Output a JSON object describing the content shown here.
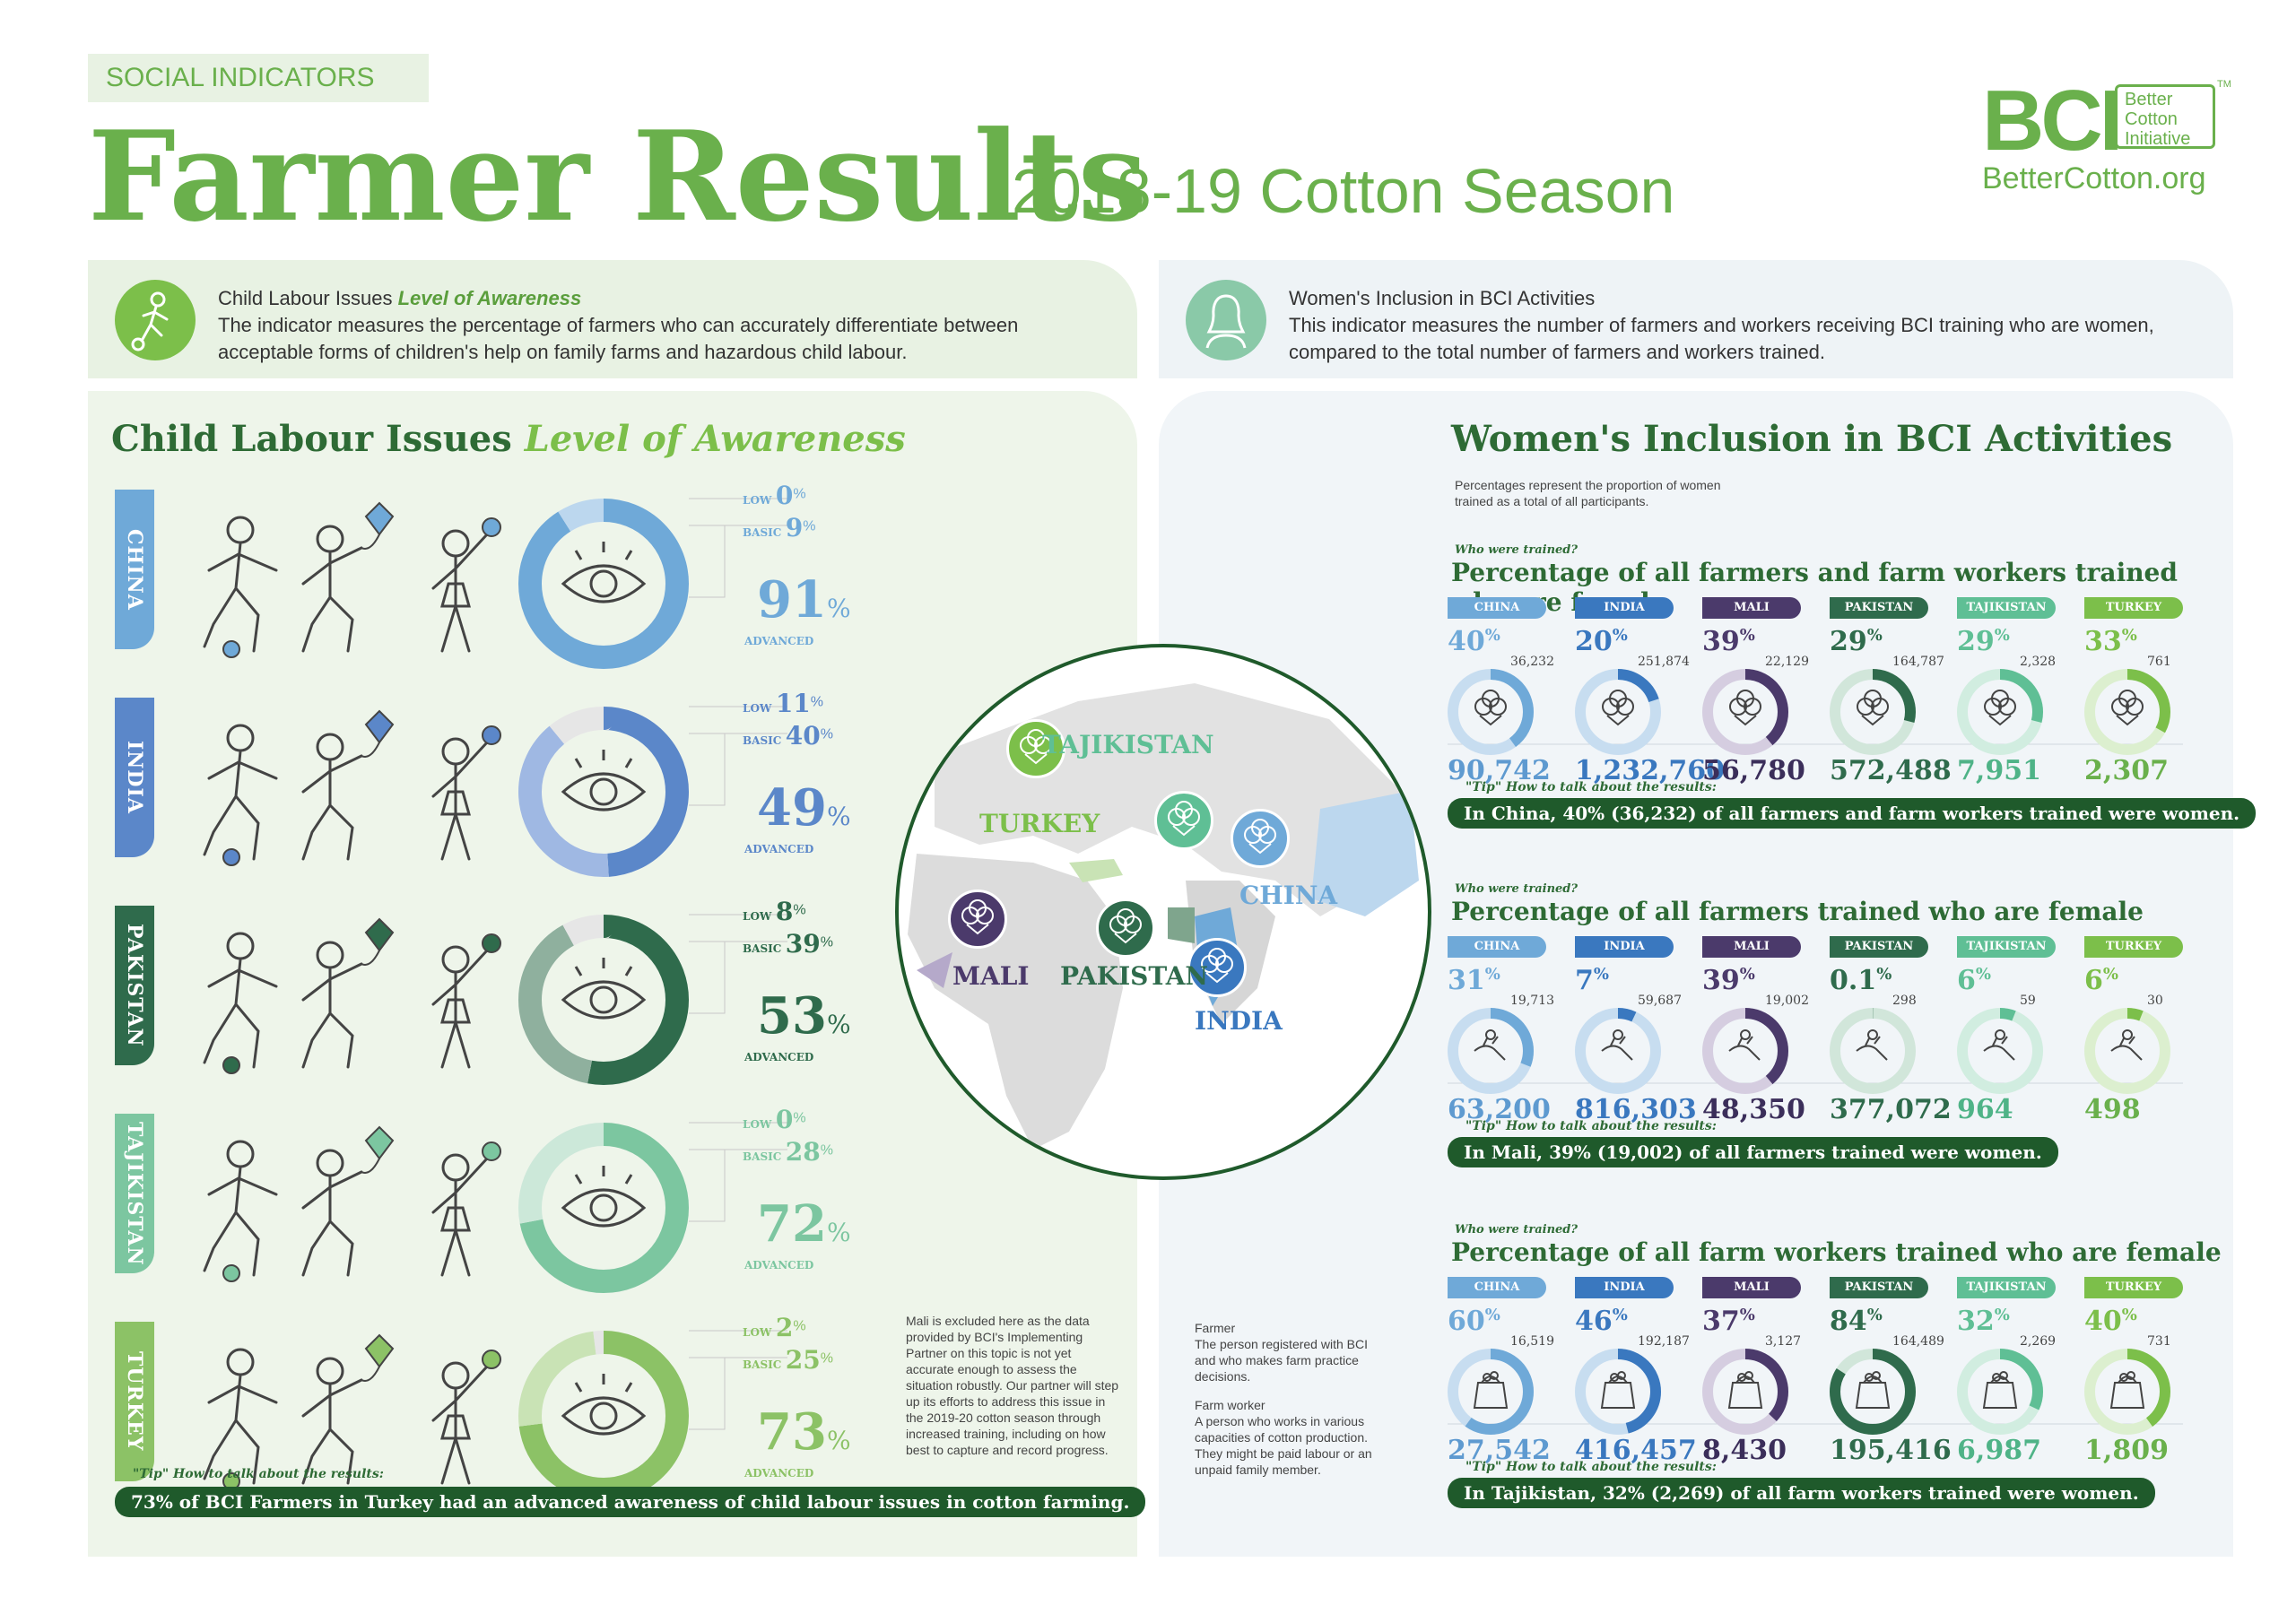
{
  "header": {
    "tag": "SOCIAL INDICATORS",
    "title": "Farmer Results",
    "subtitle": "2018-19 Cotton Season",
    "logo_letters": "BCI",
    "logo_box": [
      "Better",
      "Cotton",
      "Initiative"
    ],
    "logo_url": "BetterCotton.org",
    "logo_tm": "TM"
  },
  "left_header": {
    "title_plain": "Child Labour Issues",
    "title_italic": "Level of Awareness",
    "description": "The indicator measures the percentage of farmers who can accurately differentiate between acceptable forms of children's help on family farms and hazardous child labour."
  },
  "right_header": {
    "title": "Women's Inclusion in BCI Activities",
    "description": "This indicator measures the number of farmers and workers receiving BCI training who are women, compared to the total number of farmers and workers trained."
  },
  "child_labour": {
    "title_plain": "Child Labour Issues",
    "title_italic": "Level of Awareness",
    "labels": {
      "low": "LOW",
      "basic": "BASIC",
      "advanced": "ADVANCED",
      "pct": "%"
    },
    "countries": [
      {
        "name": "CHINA",
        "low": "0",
        "basic": "9",
        "advanced": "91",
        "low_v": 0,
        "basic_v": 9,
        "adv_v": 91,
        "color": "#6fa9d8",
        "light": "#bcd7ee"
      },
      {
        "name": "INDIA",
        "low": "11",
        "basic": "40",
        "advanced": "49",
        "low_v": 11,
        "basic_v": 40,
        "adv_v": 49,
        "color": "#5b87c9",
        "light": "#9fb8e3"
      },
      {
        "name": "PAKISTAN",
        "low": "8",
        "basic": "39",
        "advanced": "53",
        "low_v": 8,
        "basic_v": 39,
        "adv_v": 53,
        "color": "#2f6b4c",
        "light": "#8fb09e"
      },
      {
        "name": "TAJIKISTAN",
        "low": "0",
        "basic": "28",
        "advanced": "72",
        "low_v": 0,
        "basic_v": 28,
        "adv_v": 72,
        "color": "#7cc6a0",
        "light": "#cce8d9"
      },
      {
        "name": "TURKEY",
        "low": "2",
        "basic": "25",
        "advanced": "73",
        "low_v": 2,
        "basic_v": 25,
        "adv_v": 73,
        "color": "#8cc266",
        "light": "#c9e3b5"
      }
    ],
    "note": "Mali is excluded here as the data provided by BCI's Implementing Partner on this topic is not yet accurate enough to assess the situation robustly. Our partner will step up its efforts to address this issue in the 2019-20 cotton season through increased training, including on how best to capture and record progress.",
    "tip_label": "\"Tip\" How to talk about the results:",
    "tip_text": "73% of BCI Farmers in Turkey had an advanced awareness of child labour issues in cotton farming."
  },
  "map": {
    "labels": [
      "TAJIKISTAN",
      "TURKEY",
      "CHINA",
      "MALI",
      "PAKISTAN",
      "INDIA"
    ]
  },
  "definitions": {
    "farmer_title": "Farmer",
    "farmer_text": "The person registered with BCI and who makes farm practice decisions.",
    "worker_title": "Farm worker",
    "worker_text": "A person who works in various capacities of cotton production. They might be paid labour or an unpaid family member."
  },
  "women": {
    "title": "Women's Inclusion in BCI Activities",
    "intro": "Percentages represent the proportion of women trained as a total of all participants.",
    "who_label": "Who were trained?",
    "tip_label": "\"Tip\" How to talk about the results:",
    "sections": [
      {
        "title": "Percentage of all farmers and farm workers trained who are female",
        "tip": "In China, 40% (36,232) of all farmers and farm workers trained were women.",
        "items": [
          {
            "country": "CHINA",
            "pct": "40",
            "women": "36,232",
            "total": "90,742",
            "value": 40
          },
          {
            "country": "INDIA",
            "pct": "20",
            "women": "251,874",
            "total": "1,232,760",
            "value": 20
          },
          {
            "country": "MALI",
            "pct": "39",
            "women": "22,129",
            "total": "56,780",
            "value": 39
          },
          {
            "country": "PAKISTAN",
            "pct": "29",
            "women": "164,787",
            "total": "572,488",
            "value": 29
          },
          {
            "country": "TAJIKISTAN",
            "pct": "29",
            "women": "2,328",
            "total": "7,951",
            "value": 29
          },
          {
            "country": "TURKEY",
            "pct": "33",
            "women": "761",
            "total": "2,307",
            "value": 33
          }
        ]
      },
      {
        "title": "Percentage of all farmers trained who are female",
        "tip": "In Mali, 39% (19,002) of all farmers trained were women.",
        "items": [
          {
            "country": "CHINA",
            "pct": "31",
            "women": "19,713",
            "total": "63,200",
            "value": 31
          },
          {
            "country": "INDIA",
            "pct": "7",
            "women": "59,687",
            "total": "816,303",
            "value": 7
          },
          {
            "country": "MALI",
            "pct": "39",
            "women": "19,002",
            "total": "48,350",
            "value": 39
          },
          {
            "country": "PAKISTAN",
            "pct": "0.1",
            "women": "298",
            "total": "377,072",
            "value": 0.1
          },
          {
            "country": "TAJIKISTAN",
            "pct": "6",
            "women": "59",
            "total": "964",
            "value": 6
          },
          {
            "country": "TURKEY",
            "pct": "6",
            "women": "30",
            "total": "498",
            "value": 6
          }
        ]
      },
      {
        "title": "Percentage of all farm workers trained who are female",
        "tip": "In Tajikistan, 32% (2,269) of all farm workers trained were women.",
        "items": [
          {
            "country": "CHINA",
            "pct": "60",
            "women": "16,519",
            "total": "27,542",
            "value": 60
          },
          {
            "country": "INDIA",
            "pct": "46",
            "women": "192,187",
            "total": "416,457",
            "value": 46
          },
          {
            "country": "MALI",
            "pct": "37",
            "women": "3,127",
            "total": "8,430",
            "value": 37
          },
          {
            "country": "PAKISTAN",
            "pct": "84",
            "women": "164,489",
            "total": "195,416",
            "value": 84
          },
          {
            "country": "TAJIKISTAN",
            "pct": "32",
            "women": "2,269",
            "total": "6,987",
            "value": 32
          },
          {
            "country": "TURKEY",
            "pct": "40",
            "women": "731",
            "total": "1,809",
            "value": 40
          }
        ]
      }
    ],
    "colors": {
      "CHINA": "#6fa9d8",
      "INDIA": "#3a78bf",
      "MALI": "#4b3a6b",
      "PAKISTAN": "#2f6b4c",
      "TAJIKISTAN": "#5fbf95",
      "TURKEY": "#7cbf4a"
    },
    "light_colors": {
      "CHINA": "#c7ddf0",
      "INDIA": "#c7ddf0",
      "MALI": "#d5cde0",
      "PAKISTAN": "#d1e6da",
      "TAJIKISTAN": "#d1ede0",
      "TURKEY": "#dcefcf"
    },
    "total_colors": {
      "CHINA": "#5e9ad0",
      "INDIA": "#3a78bf",
      "MALI": "#3b2e5a",
      "PAKISTAN": "#2f6b4c",
      "TAJIKISTAN": "#4fb387",
      "TURKEY": "#6ab04c"
    }
  }
}
